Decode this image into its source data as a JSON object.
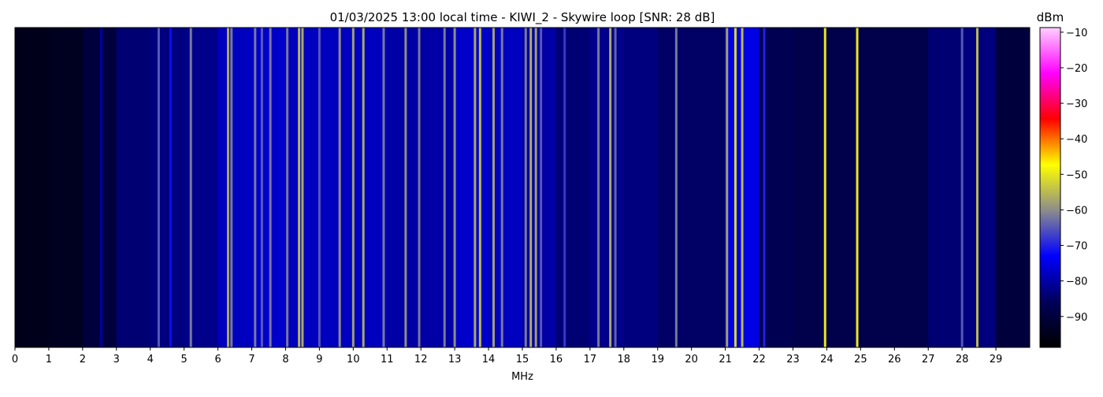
{
  "chart_data": {
    "type": "spectrogram",
    "title": "01/03/2025 13:00 local time - KIWI_2 - Skywire loop [SNR: 28 dB]",
    "x_label": "MHz",
    "colorbar_label": "dBm",
    "xlim": [
      0,
      30
    ],
    "xticks": [
      0,
      1,
      2,
      3,
      4,
      5,
      6,
      7,
      8,
      9,
      10,
      11,
      12,
      13,
      14,
      15,
      16,
      17,
      18,
      19,
      20,
      21,
      22,
      23,
      24,
      25,
      26,
      27,
      28,
      29
    ],
    "clim": [
      -98.7,
      -8.7
    ],
    "cticks": [
      {
        "value": -90,
        "label": "−90"
      },
      {
        "value": -80,
        "label": "−80"
      },
      {
        "value": -70,
        "label": "−70"
      },
      {
        "value": -60,
        "label": "−60"
      },
      {
        "value": -50,
        "label": "−50"
      },
      {
        "value": -40,
        "label": "−40"
      },
      {
        "value": -30,
        "label": "−30"
      },
      {
        "value": -20,
        "label": "−20"
      },
      {
        "value": -10,
        "label": "−10"
      }
    ],
    "colormap": [
      "#000000",
      "#00005a",
      "#0000ff",
      "#8c8c8c",
      "#ffff00",
      "#ff0000",
      "#ff00ff",
      "#ffd0ff"
    ],
    "background": {
      "bins": [
        0,
        1,
        2,
        3,
        4,
        5,
        6,
        7,
        8,
        9,
        10,
        11,
        12,
        13,
        14,
        15,
        16,
        17,
        18,
        19,
        20,
        21,
        22,
        23,
        24,
        25,
        26,
        27,
        28,
        29,
        30
      ],
      "values": [
        -95,
        -94,
        -90,
        -84,
        -83,
        -82,
        -78,
        -77,
        -78,
        -78,
        -78,
        -80,
        -80,
        -77,
        -78,
        -80,
        -84,
        -82,
        -83,
        -85,
        -85,
        -75,
        -87,
        -88,
        -88,
        -88,
        -88,
        -84,
        -83,
        -90
      ]
    },
    "signals": {
      "x": [
        2.55,
        4.25,
        4.6,
        5.2,
        6.3,
        6.4,
        7.1,
        7.3,
        7.55,
        8.05,
        8.4,
        8.5,
        9.0,
        9.6,
        10.0,
        10.3,
        10.9,
        11.55,
        11.95,
        12.7,
        13.0,
        13.6,
        13.75,
        14.15,
        14.4,
        15.1,
        15.25,
        15.4,
        15.55,
        16.25,
        17.25,
        17.6,
        17.75,
        19.55,
        21.05,
        21.3,
        21.5,
        22.15,
        23.95,
        24.9,
        28.0,
        28.45
      ],
      "values": [
        -80,
        -65,
        -72,
        -62,
        -57,
        -62,
        -62,
        -65,
        -62,
        -62,
        -55,
        -57,
        -65,
        -60,
        -58,
        -57,
        -62,
        -60,
        -62,
        -62,
        -60,
        -57,
        -55,
        -58,
        -62,
        -62,
        -56,
        -58,
        -65,
        -68,
        -62,
        -57,
        -64,
        -62,
        -58,
        -52,
        -55,
        -70,
        -50,
        -50,
        -65,
        -55
      ]
    }
  }
}
